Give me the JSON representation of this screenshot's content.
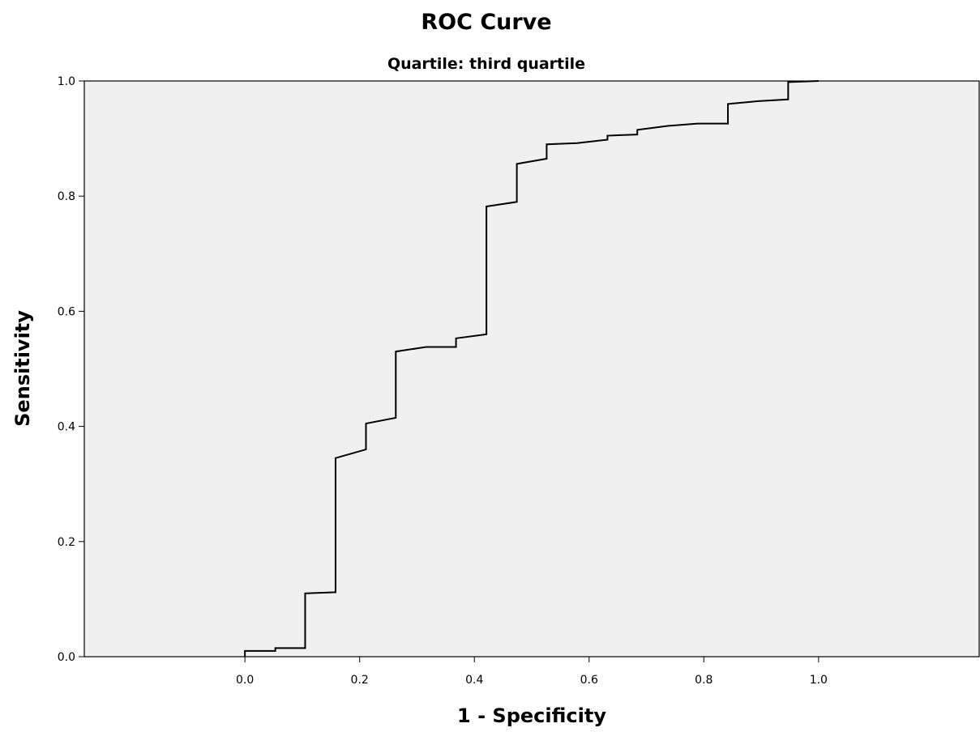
{
  "chart_data": {
    "type": "line",
    "title": "ROC Curve",
    "subtitle": "Quartile: third quartile",
    "xlabel": "1 - Specificity",
    "ylabel": "Sensitivity",
    "xlim": [
      -0.28,
      1.28
    ],
    "ylim": [
      0,
      1
    ],
    "x_ticks": [
      "0.0",
      "0.2",
      "0.4",
      "0.6",
      "0.8",
      "1.0"
    ],
    "y_ticks": [
      "0.0",
      "0.2",
      "0.4",
      "0.6",
      "0.8",
      "1.0"
    ],
    "grid": false,
    "background": "#f0f0f0",
    "line_color": "#000000",
    "series": [
      {
        "x": [
          0.0,
          0.0,
          0.053,
          0.053,
          0.105,
          0.105,
          0.158,
          0.158,
          0.211,
          0.211,
          0.263,
          0.263,
          0.316,
          0.368,
          0.368,
          0.421,
          0.421,
          0.474,
          0.474,
          0.526,
          0.526,
          0.579,
          0.632,
          0.632,
          0.684,
          0.684,
          0.737,
          0.789,
          0.842,
          0.842,
          0.895,
          0.947,
          0.947,
          1.0
        ],
        "y": [
          0.0,
          0.01,
          0.01,
          0.015,
          0.015,
          0.11,
          0.112,
          0.345,
          0.36,
          0.405,
          0.415,
          0.53,
          0.538,
          0.538,
          0.553,
          0.56,
          0.782,
          0.79,
          0.856,
          0.865,
          0.89,
          0.892,
          0.898,
          0.905,
          0.907,
          0.915,
          0.922,
          0.926,
          0.926,
          0.96,
          0.965,
          0.968,
          0.998,
          1.0
        ]
      }
    ]
  }
}
